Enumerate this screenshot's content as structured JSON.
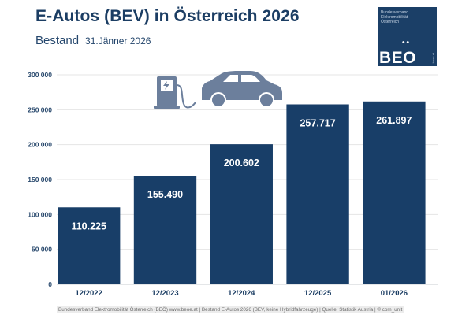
{
  "header": {
    "title": "E-Autos (BEV) in Österreich 2026",
    "subtitle": "Bestand",
    "date": "31.Jänner 2026"
  },
  "logo": {
    "small_text": "Bundesverband Elektromobilität Österreich",
    "dots": "••",
    "big_text": "BEO",
    "vertical_text": "beoe.at"
  },
  "icon": "ev-charging-car-icon",
  "colors": {
    "bar": "#183e68",
    "text": "#1b3d63",
    "icon": "#6c7f9c",
    "grid": "#e4e4e4"
  },
  "footer": "Bundesverband Elektromobilität Österreich (BEÖ) www.beoe.at | Bestand E-Autos 2026 (BEV, keine Hybridfahrzeuge) | Quelle: Statistik Austria | © com_unit",
  "chart_data": {
    "type": "bar",
    "title": "E-Autos (BEV) in Österreich 2026",
    "subtitle": "Bestand 31.Jänner 2026",
    "categories": [
      "12/2022",
      "12/2023",
      "12/2024",
      "12/2025",
      "01/2026"
    ],
    "values": [
      110225,
      155490,
      200602,
      257717,
      261897
    ],
    "value_labels": [
      "110.225",
      "155.490",
      "200.602",
      "257.717",
      "261.897"
    ],
    "xlabel": "",
    "ylabel": "",
    "ylim": [
      0,
      300000
    ],
    "yticks": [
      0,
      50000,
      100000,
      150000,
      200000,
      250000,
      300000
    ],
    "ytick_labels": [
      "0",
      "50 000",
      "100 000",
      "150 000",
      "200 000",
      "250 000",
      "300 000"
    ],
    "grid": true,
    "legend": "none"
  }
}
